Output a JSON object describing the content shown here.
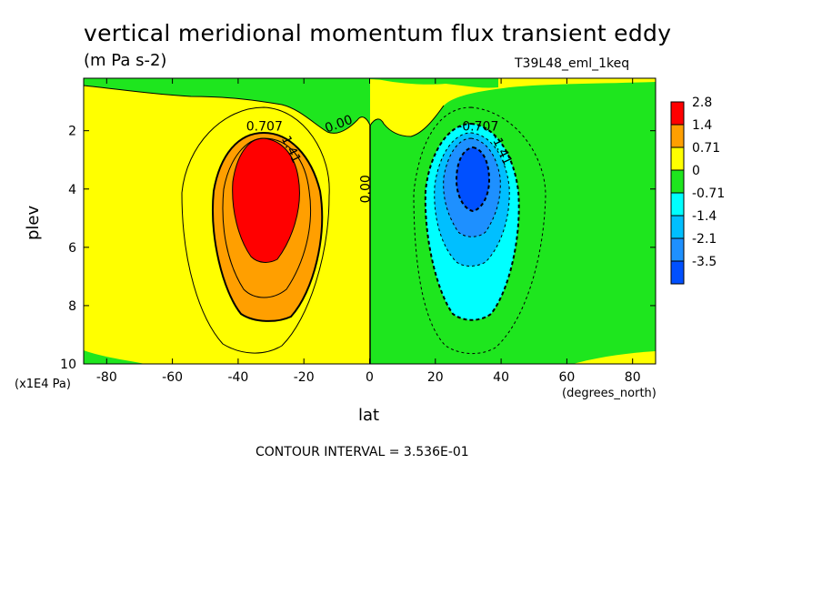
{
  "chart_data": {
    "type": "heatmap",
    "title": "vertical meridional momentum flux transient eddy",
    "units": "(m Pa s-2)",
    "run_label": "T39L48_eml_1keq",
    "xlabel": "lat",
    "xunits": "(degrees_north)",
    "ylabel": "plev",
    "yunits": "(x1E4 Pa)",
    "xlim": [
      -87,
      87
    ],
    "ylim": [
      10,
      0.2
    ],
    "x_ticks": [
      -80,
      -60,
      -40,
      -20,
      0,
      20,
      40,
      60,
      80
    ],
    "y_ticks": [
      2,
      4,
      6,
      8,
      10
    ],
    "contour_interval": "CONTOUR INTERVAL = 3.536E-01",
    "colorbar": {
      "labels": [
        "2.8",
        "1.4",
        "0.71",
        "0",
        "-0.71",
        "-1.4",
        "-2.1",
        "-3.5"
      ],
      "colors": [
        "#ff0000",
        "#ff9f00",
        "#ffff00",
        "#1ee61e",
        "#00ffff",
        "#00bfff",
        "#1e90ff",
        "#0050ff"
      ]
    },
    "contour_labels": [
      {
        "text": "0.707",
        "lat": -32,
        "plev": 2.0
      },
      {
        "text": "1.41",
        "lat": -25,
        "plev": 2.7
      },
      {
        "text": "0.00",
        "lat": -9,
        "plev": 1.9
      },
      {
        "text": "0.00",
        "lat": 0,
        "plev": 4.0
      },
      {
        "text": "-0.707",
        "lat": 33,
        "plev": 2.0
      },
      {
        "text": "-1.41",
        "lat": 39,
        "plev": 2.7
      }
    ],
    "features": [
      {
        "name": "positive-maximum",
        "lat": -32,
        "plev": 3.8,
        "value_level": "2.8"
      },
      {
        "name": "negative-minimum",
        "lat": 32,
        "plev": 3.8,
        "value_level": "-3.5"
      }
    ]
  }
}
